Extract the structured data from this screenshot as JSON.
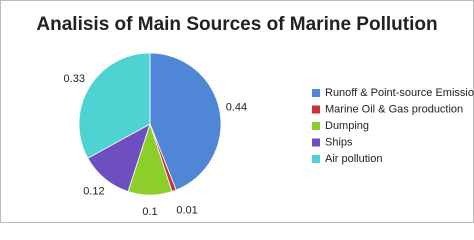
{
  "chart_data": {
    "type": "pie",
    "title": "Analisis of Main Sources of Marine Pollution",
    "categories": [
      "Runoff & Point-source Emissions",
      "Marine Oil & Gas production",
      "Dumping",
      "Ships",
      "Air pollution"
    ],
    "values": [
      0.44,
      0.01,
      0.1,
      0.12,
      0.33
    ],
    "colors": [
      "#4f86d6",
      "#c8323c",
      "#8dcf2a",
      "#6f4fc0",
      "#4fd2d2"
    ],
    "legend": "right"
  }
}
